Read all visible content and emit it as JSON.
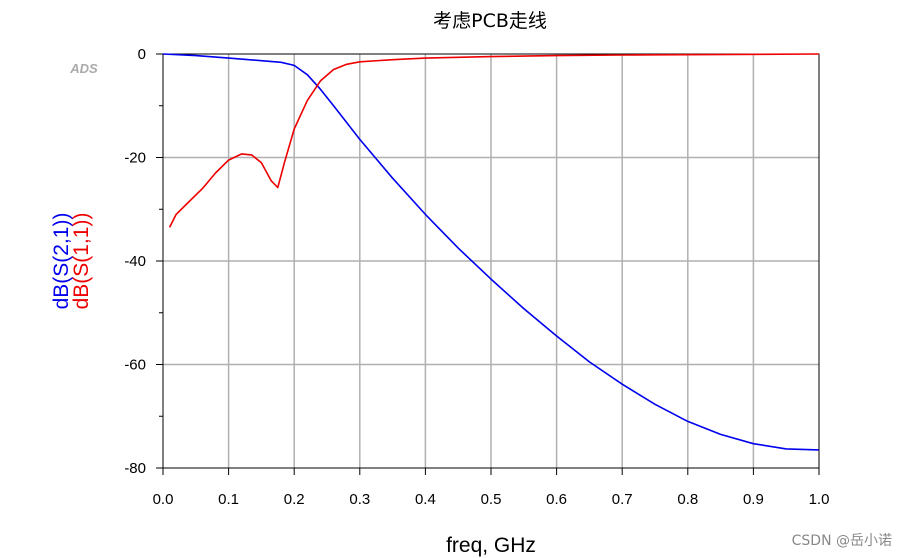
{
  "chart_data": {
    "type": "line",
    "title": "考虑PCB走线",
    "xlabel": "freq, GHz",
    "ylabel_lines": [
      "dB(S(2,1))",
      "dB(S(1,1))"
    ],
    "xlim": [
      0.0,
      1.0
    ],
    "ylim": [
      -80,
      0
    ],
    "x_ticks": [
      "0.0",
      "0.1",
      "0.2",
      "0.3",
      "0.4",
      "0.5",
      "0.6",
      "0.7",
      "0.8",
      "0.9",
      "1.0"
    ],
    "y_ticks": [
      "0",
      "-20",
      "-40",
      "-60",
      "-80"
    ],
    "grid": true,
    "series": [
      {
        "name": "dB(S(2,1))",
        "color": "#0000ee",
        "x": [
          0.0,
          0.05,
          0.1,
          0.15,
          0.18,
          0.2,
          0.22,
          0.24,
          0.26,
          0.3,
          0.35,
          0.4,
          0.45,
          0.5,
          0.55,
          0.6,
          0.65,
          0.7,
          0.75,
          0.8,
          0.85,
          0.9,
          0.95,
          1.0
        ],
        "y": [
          0,
          -0.3,
          -0.8,
          -1.3,
          -1.6,
          -2.2,
          -4,
          -6.8,
          -10,
          -16.5,
          -24,
          -31,
          -37.5,
          -43.5,
          -49.2,
          -54.5,
          -59.5,
          -63.8,
          -67.7,
          -71,
          -73.5,
          -75.3,
          -76.3,
          -76.5
        ]
      },
      {
        "name": "dB(S(1,1))",
        "color": "#ee0000",
        "x": [
          0.01,
          0.02,
          0.04,
          0.06,
          0.08,
          0.1,
          0.12,
          0.135,
          0.15,
          0.165,
          0.175,
          0.185,
          0.2,
          0.22,
          0.24,
          0.26,
          0.28,
          0.3,
          0.35,
          0.4,
          0.5,
          0.6,
          0.7,
          0.75,
          1.0
        ],
        "y": [
          -33.5,
          -31,
          -28.5,
          -26,
          -23,
          -20.5,
          -19.3,
          -19.5,
          -21,
          -24.5,
          -25.8,
          -21,
          -14.5,
          -9,
          -5.2,
          -3,
          -2,
          -1.5,
          -1.1,
          -0.8,
          -0.5,
          -0.3,
          -0.2,
          -0.15,
          0
        ]
      }
    ]
  },
  "annotations": {
    "ads_label": "ADS",
    "watermark": "CSDN @岳小诺"
  }
}
